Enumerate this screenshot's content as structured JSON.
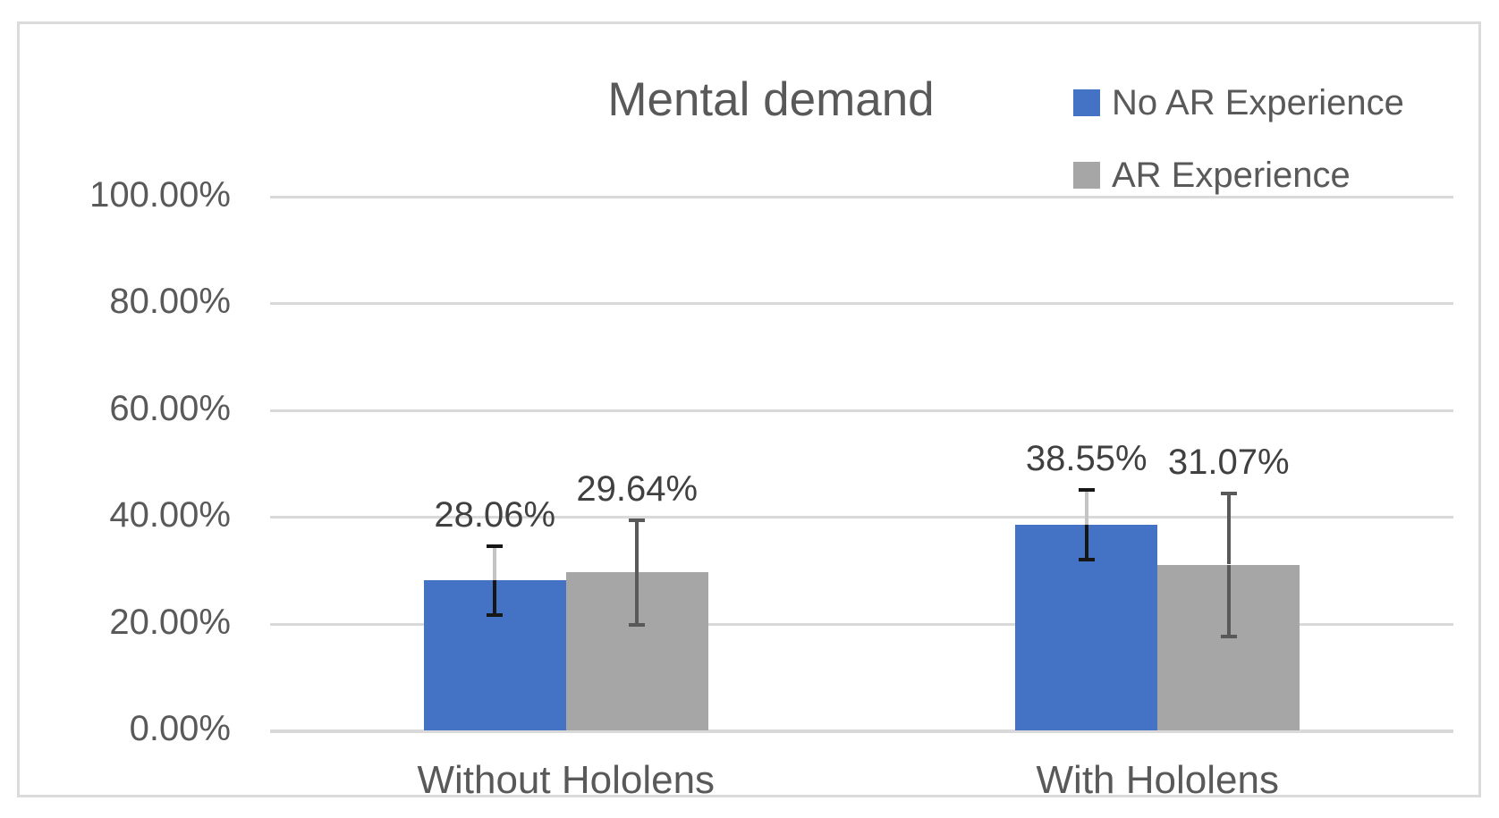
{
  "chart_data": {
    "type": "bar",
    "title": "Mental demand",
    "categories": [
      "Without Hololens",
      "With Hololens"
    ],
    "series": [
      {
        "name": "No AR Experience",
        "color": "#4472C4",
        "values": [
          28.06,
          38.55
        ],
        "labels": [
          "28.06%",
          "38.55%"
        ],
        "error_plus_minus": [
          6.5,
          6.5
        ],
        "error_bar_colors": {
          "above_bar": "#C4C4C4",
          "inside_bar": "#161616",
          "cap": "#161616"
        }
      },
      {
        "name": "AR Experience",
        "color": "#A6A6A6",
        "values": [
          29.64,
          31.07
        ],
        "labels": [
          "29.64%",
          "31.07%"
        ],
        "error_plus_minus": [
          9.8,
          13.4
        ],
        "error_bar_colors": {
          "above_bar": "#595959",
          "inside_bar": "#595959",
          "cap": "#595959"
        }
      }
    ],
    "y_axis": {
      "min": 0,
      "max": 100,
      "tick_labels": [
        "100.00%",
        "80.00%",
        "60.00%",
        "40.00%",
        "20.00%",
        "0.00%"
      ],
      "tick_values": [
        100,
        80,
        60,
        40,
        20,
        0
      ]
    },
    "x_axis": {
      "labels": [
        "Without Hololens",
        "With Hololens"
      ]
    },
    "legend": {
      "position": "top-right",
      "entries": [
        "No AR Experience",
        "AR Experience"
      ]
    },
    "grid": true,
    "colors": {
      "gridline": "#D9D9D9",
      "axis_line": "#D9D9D9",
      "frame_border": "#DBDBDB",
      "title_text": "#595959",
      "axis_text": "#595959",
      "data_label_text": "#404040",
      "background": "#FFFFFF"
    }
  }
}
